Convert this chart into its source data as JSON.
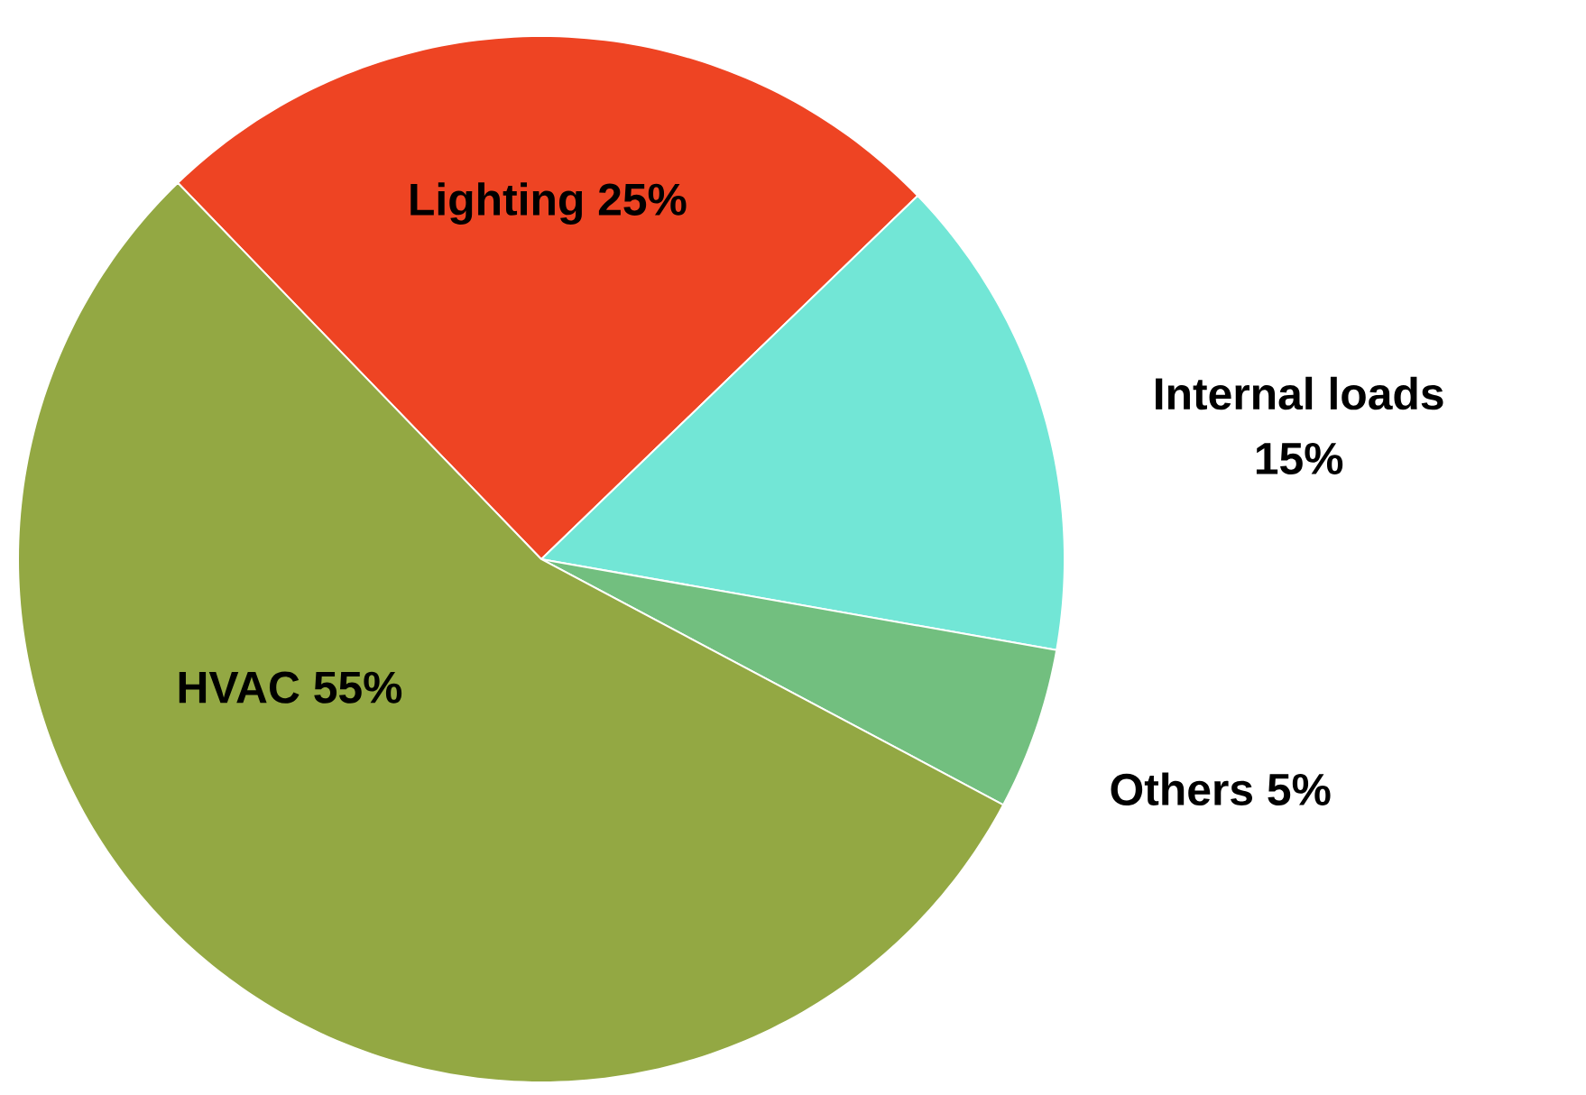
{
  "chart_data": {
    "type": "pie",
    "categories": [
      "Lighting",
      "Internal loads",
      "Others",
      "HVAC"
    ],
    "values": [
      25,
      15,
      5,
      55
    ],
    "value_labels": [
      "25%",
      "15%",
      "5%",
      "55%"
    ],
    "colors": [
      "#ee4423",
      "#72e6d6",
      "#72bf7f",
      "#93a843"
    ]
  }
}
